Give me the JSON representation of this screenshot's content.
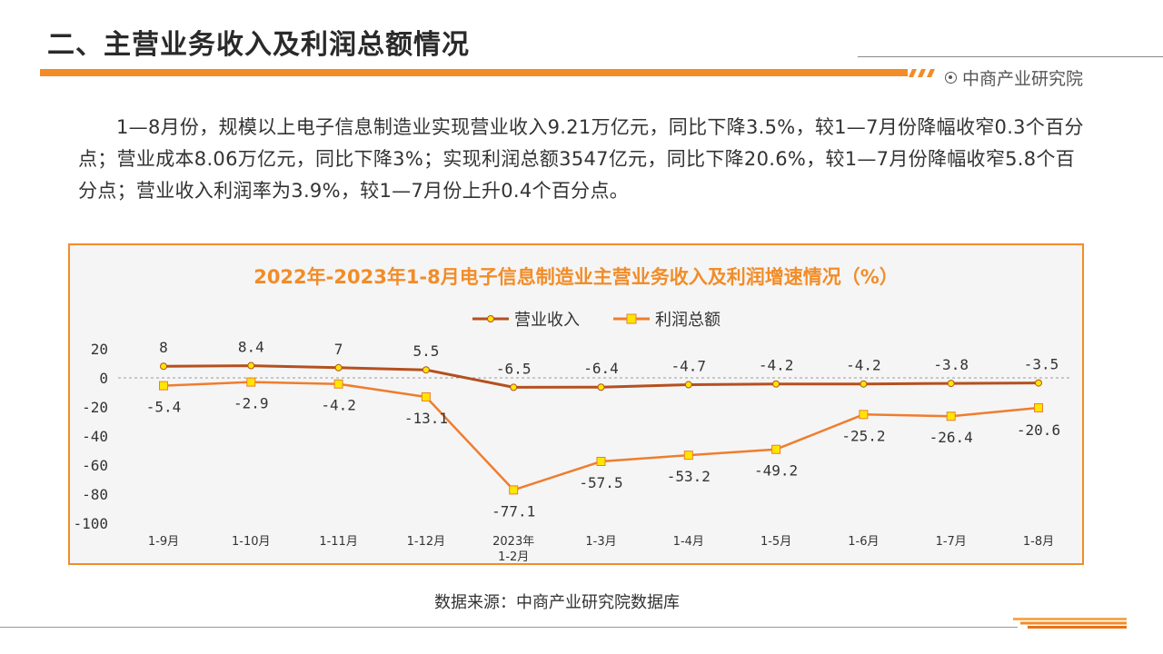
{
  "header": {
    "title": "二、主营业务收入及利润总额情况",
    "brand": "中商产业研究院"
  },
  "paragraph": "1—8月份，规模以上电子信息制造业实现营业收入9.21万亿元，同比下降3.5%，较1—7月份降幅收窄0.3个百分点；营业成本8.06万亿元，同比下降3%；实现利润总额3547亿元，同比下降20.6%，较1—7月份降幅收窄5.8个百分点；营业收入利润率为3.9%，较1—7月份上升0.4个百分点。",
  "source": "数据来源：中商产业研究院数据库",
  "colors": {
    "accent": "#f28c28",
    "revenue": "#b5501f",
    "profit": "#ef7d2e",
    "marker_fill": "#ffe600"
  },
  "chart_data": {
    "type": "line",
    "title": "2022年-2023年1-8月电子信息制造业主营业务收入及利润增速情况（%）",
    "categories": [
      [
        "1-9月"
      ],
      [
        "1-10月"
      ],
      [
        "1-11月"
      ],
      [
        "1-12月"
      ],
      [
        "2023年",
        "1-2月"
      ],
      [
        "1-3月"
      ],
      [
        "1-4月"
      ],
      [
        "1-5月"
      ],
      [
        "1-6月"
      ],
      [
        "1-7月"
      ],
      [
        "1-8月"
      ]
    ],
    "series": [
      {
        "name": "营业收入",
        "values": [
          8,
          8.4,
          7,
          5.5,
          -6.5,
          -6.4,
          -4.7,
          -4.2,
          -4.2,
          -3.8,
          -3.5
        ]
      },
      {
        "name": "利润总额",
        "values": [
          -5.4,
          -2.9,
          -4.2,
          -13.1,
          -77.1,
          -57.5,
          -53.2,
          -49.2,
          -25.2,
          -26.4,
          -20.6
        ]
      }
    ],
    "ylim": [
      -100,
      20
    ],
    "yticks": [
      20,
      0,
      -20,
      -40,
      -60,
      -80,
      -100
    ],
    "zero_line": "dashed",
    "legend": "top-center"
  }
}
